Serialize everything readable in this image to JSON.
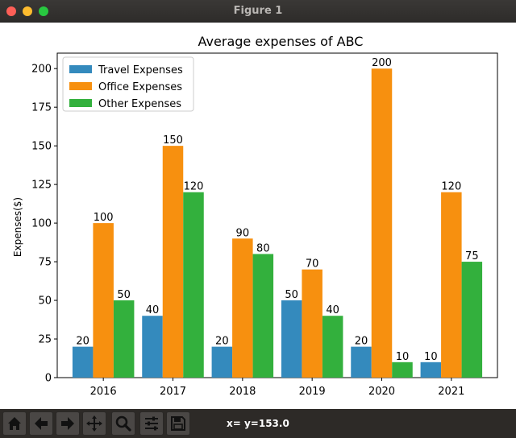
{
  "window": {
    "title": "Figure 1"
  },
  "toolbar": {
    "buttons": [
      {
        "name": "home-button",
        "icon": "home-icon"
      },
      {
        "name": "back-button",
        "icon": "arrow-left-icon"
      },
      {
        "name": "forward-button",
        "icon": "arrow-right-icon"
      },
      {
        "name": "pan-button",
        "icon": "move-icon"
      },
      {
        "name": "zoom-button",
        "icon": "magnifier-icon"
      },
      {
        "name": "configure-subplots-button",
        "icon": "sliders-icon"
      },
      {
        "name": "save-button",
        "icon": "floppy-disk-icon"
      }
    ],
    "coords": "x= y=153.0"
  },
  "chart_data": {
    "type": "bar",
    "title": "Average expenses of ABC",
    "xlabel": "",
    "ylabel": "Expenses($)",
    "categories": [
      "2016",
      "2017",
      "2018",
      "2019",
      "2020",
      "2021"
    ],
    "series": [
      {
        "name": "Travel Expenses",
        "color": "#348abd",
        "values": [
          20,
          40,
          20,
          50,
          20,
          10
        ]
      },
      {
        "name": "Office Expenses",
        "color": "#f7900f",
        "values": [
          100,
          150,
          90,
          70,
          200,
          120
        ]
      },
      {
        "name": "Other Expenses",
        "color": "#33b03d",
        "values": [
          50,
          120,
          80,
          40,
          10,
          75
        ]
      }
    ],
    "ylim": [
      0,
      210
    ],
    "yticks": [
      0,
      25,
      50,
      75,
      100,
      125,
      150,
      175,
      200
    ],
    "grid": false,
    "legend": "upper-left",
    "data_labels": true
  }
}
